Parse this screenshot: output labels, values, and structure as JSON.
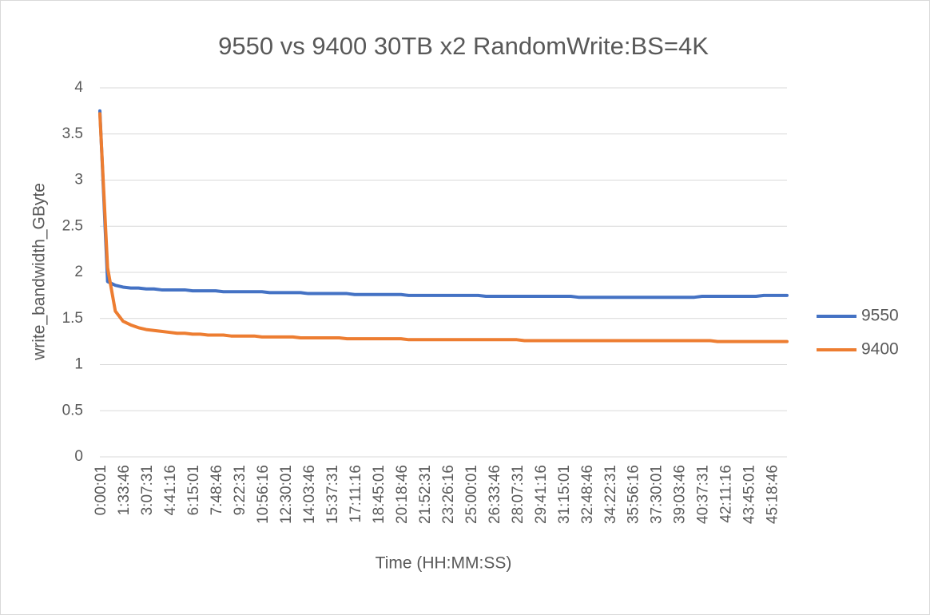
{
  "chart_data": {
    "type": "line",
    "title": "9550 vs 9400 30TB x2 RandomWrite:BS=4K",
    "x_label": "Time (HH:MM:SS)",
    "y_label": "write_bandwidth_GByte",
    "categories": [
      "0:00:01",
      null,
      null,
      "1:33:46",
      null,
      null,
      "3:07:31",
      null,
      null,
      "4:41:16",
      null,
      null,
      "6:15:01",
      null,
      null,
      "7:48:46",
      null,
      null,
      "9:22:31",
      null,
      null,
      "10:56:16",
      null,
      null,
      "12:30:01",
      null,
      null,
      "14:03:46",
      null,
      null,
      "15:37:31",
      null,
      null,
      "17:11:16",
      null,
      null,
      "18:45:01",
      null,
      null,
      "20:18:46",
      null,
      null,
      "21:52:31",
      null,
      null,
      "23:26:16",
      null,
      null,
      "25:00:01",
      null,
      null,
      "26:33:46",
      null,
      null,
      "28:07:31",
      null,
      null,
      "29:41:16",
      null,
      null,
      "31:15:01",
      null,
      null,
      "32:48:46",
      null,
      null,
      "34:22:31",
      null,
      null,
      "35:56:16",
      null,
      null,
      "37:30:01",
      null,
      null,
      "39:03:46",
      null,
      null,
      "40:37:31",
      null,
      null,
      "42:11:16",
      null,
      null,
      "43:45:01",
      null,
      null,
      "45:18:46",
      null,
      null
    ],
    "series": [
      {
        "name": "9550",
        "color": "#4472c4",
        "values": [
          3.75,
          1.9,
          1.86,
          1.84,
          1.83,
          1.83,
          1.82,
          1.82,
          1.81,
          1.81,
          1.81,
          1.81,
          1.8,
          1.8,
          1.8,
          1.8,
          1.79,
          1.79,
          1.79,
          1.79,
          1.79,
          1.79,
          1.78,
          1.78,
          1.78,
          1.78,
          1.78,
          1.77,
          1.77,
          1.77,
          1.77,
          1.77,
          1.77,
          1.76,
          1.76,
          1.76,
          1.76,
          1.76,
          1.76,
          1.76,
          1.75,
          1.75,
          1.75,
          1.75,
          1.75,
          1.75,
          1.75,
          1.75,
          1.75,
          1.75,
          1.74,
          1.74,
          1.74,
          1.74,
          1.74,
          1.74,
          1.74,
          1.74,
          1.74,
          1.74,
          1.74,
          1.74,
          1.73,
          1.73,
          1.73,
          1.73,
          1.73,
          1.73,
          1.73,
          1.73,
          1.73,
          1.73,
          1.73,
          1.73,
          1.73,
          1.73,
          1.73,
          1.73,
          1.74,
          1.74,
          1.74,
          1.74,
          1.74,
          1.74,
          1.74,
          1.74,
          1.75,
          1.75,
          1.75,
          1.75
        ]
      },
      {
        "name": "9400",
        "color": "#ed7d31",
        "values": [
          3.72,
          2.05,
          1.58,
          1.47,
          1.43,
          1.4,
          1.38,
          1.37,
          1.36,
          1.35,
          1.34,
          1.34,
          1.33,
          1.33,
          1.32,
          1.32,
          1.32,
          1.31,
          1.31,
          1.31,
          1.31,
          1.3,
          1.3,
          1.3,
          1.3,
          1.3,
          1.29,
          1.29,
          1.29,
          1.29,
          1.29,
          1.29,
          1.28,
          1.28,
          1.28,
          1.28,
          1.28,
          1.28,
          1.28,
          1.28,
          1.27,
          1.27,
          1.27,
          1.27,
          1.27,
          1.27,
          1.27,
          1.27,
          1.27,
          1.27,
          1.27,
          1.27,
          1.27,
          1.27,
          1.27,
          1.26,
          1.26,
          1.26,
          1.26,
          1.26,
          1.26,
          1.26,
          1.26,
          1.26,
          1.26,
          1.26,
          1.26,
          1.26,
          1.26,
          1.26,
          1.26,
          1.26,
          1.26,
          1.26,
          1.26,
          1.26,
          1.26,
          1.26,
          1.26,
          1.26,
          1.25,
          1.25,
          1.25,
          1.25,
          1.25,
          1.25,
          1.25,
          1.25,
          1.25,
          1.25
        ]
      }
    ],
    "ylim": [
      0,
      4
    ],
    "yticks": [
      0,
      0.5,
      1,
      1.5,
      2,
      2.5,
      3,
      3.5,
      4
    ],
    "grid": true,
    "legend": "right"
  }
}
